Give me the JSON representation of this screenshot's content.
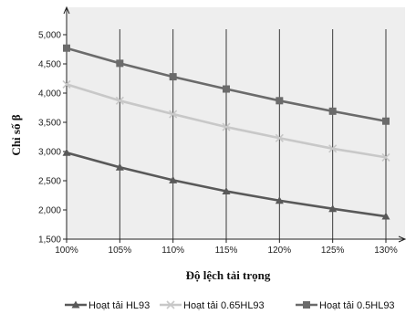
{
  "chart_data": {
    "type": "line",
    "xlabel": "Độ lệch tải trọng",
    "ylabel": "Chỉ số β",
    "categories": [
      "100%",
      "105%",
      "110%",
      "115%",
      "120%",
      "125%",
      "130%"
    ],
    "ylim": [
      1500,
      5000
    ],
    "yticks": [
      1500,
      2000,
      2500,
      3000,
      3500,
      4000,
      4500,
      5000
    ],
    "ytick_labels": [
      "1,500",
      "2,000",
      "2,500",
      "3,000",
      "3,500",
      "4,000",
      "4,500",
      "5,000"
    ],
    "grid": "vertical",
    "legend_position": "bottom",
    "series": [
      {
        "name": "Hoạt tải HL93",
        "marker": "triangle",
        "color": "#595959",
        "values": [
          2980,
          2730,
          2510,
          2320,
          2160,
          2020,
          1890
        ]
      },
      {
        "name": "Hoạt tải 0.65HL93",
        "marker": "x",
        "color": "#c8c8c8",
        "values": [
          4150,
          3870,
          3640,
          3420,
          3230,
          3050,
          2900
        ]
      },
      {
        "name": "Hoạt tải 0.5HL93",
        "marker": "square",
        "color": "#6b6b6b",
        "values": [
          4770,
          4510,
          4280,
          4070,
          3870,
          3690,
          3520
        ]
      }
    ]
  }
}
